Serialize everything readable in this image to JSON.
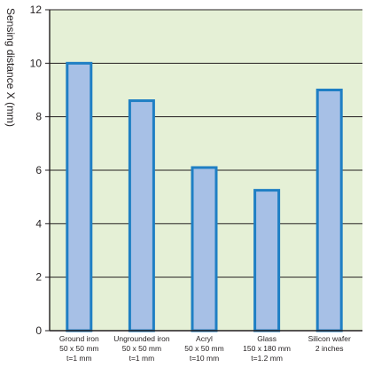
{
  "chart_data": {
    "type": "bar",
    "title": "",
    "xlabel": "",
    "ylabel": "Sensing distance X (mm)",
    "ylim": [
      0,
      12
    ],
    "yticks": [
      0,
      2,
      4,
      6,
      8,
      10,
      12
    ],
    "grid": true,
    "categories": [
      [
        "Ground iron",
        "50 x 50 mm",
        "t=1 mm"
      ],
      [
        "Ungrounded iron",
        "50 x 50 mm",
        "t=1 mm"
      ],
      [
        "Acryl",
        "50 x 50 mm",
        "t=10 mm"
      ],
      [
        "Glass",
        "150 x 180 mm",
        "t=1.2 mm"
      ],
      [
        "Silicon wafer",
        "2 inches"
      ]
    ],
    "values": [
      10.0,
      8.6,
      6.1,
      5.25,
      9.0
    ],
    "colors": {
      "plot_background": "#e5f0d6",
      "bar_fill": "#a7c0e6",
      "bar_stroke": "#1f7fc4",
      "grid": "#231f20",
      "axis": "#231f20"
    }
  }
}
